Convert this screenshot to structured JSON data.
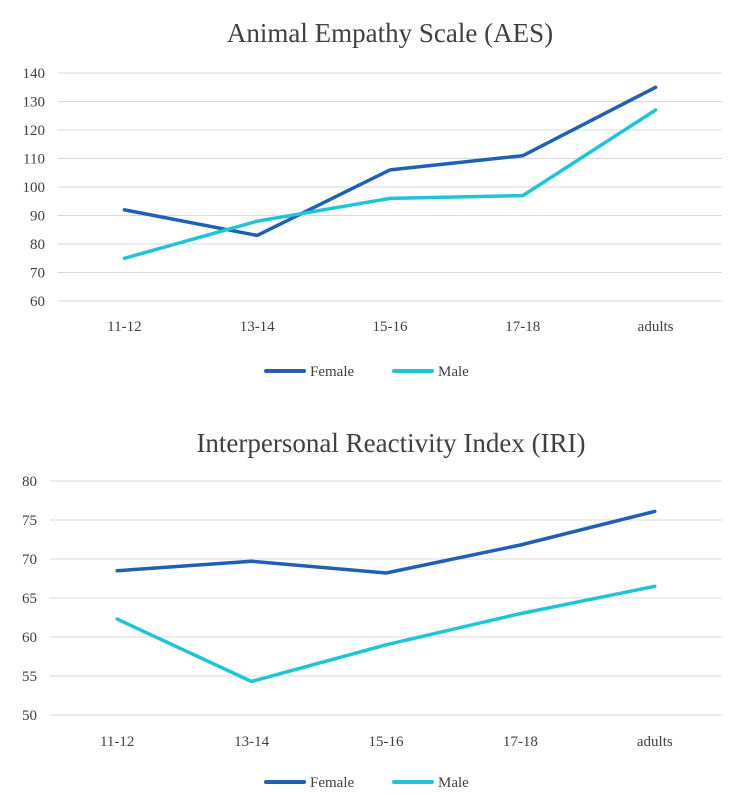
{
  "colors": {
    "female": "#1f5fb4",
    "male": "#1ec5d4",
    "text": "#404040",
    "grid": "#d9d9d9"
  },
  "chart_data": [
    {
      "type": "line",
      "title": "Animal Empathy Scale (AES)",
      "xlabel": "",
      "ylabel": "",
      "categories": [
        "11-12",
        "13-14",
        "15-16",
        "17-18",
        "adults"
      ],
      "ylim": [
        60,
        140
      ],
      "yticks": [
        60,
        70,
        80,
        90,
        100,
        110,
        120,
        130,
        140
      ],
      "grid": true,
      "legend_position": "bottom",
      "series": [
        {
          "name": "Female",
          "color": "#1f5fb4",
          "values": [
            92,
            83,
            106,
            111,
            135
          ]
        },
        {
          "name": "Male",
          "color": "#1ec5d4",
          "values": [
            75,
            88,
            96,
            97,
            127
          ]
        }
      ]
    },
    {
      "type": "line",
      "title": "Interpersonal Reactivity Index (IRI)",
      "xlabel": "",
      "ylabel": "",
      "categories": [
        "11-12",
        "13-14",
        "15-16",
        "17-18",
        "adults"
      ],
      "ylim": [
        50,
        80
      ],
      "yticks": [
        50,
        55,
        60,
        65,
        70,
        75,
        80
      ],
      "grid": true,
      "legend_position": "bottom",
      "series": [
        {
          "name": "Female",
          "color": "#1f5fb4",
          "values": [
            68.5,
            69.7,
            68.2,
            71.8,
            76.1
          ]
        },
        {
          "name": "Male",
          "color": "#1ec5d4",
          "values": [
            62.3,
            54.3,
            59,
            63,
            66.5
          ]
        }
      ]
    }
  ]
}
